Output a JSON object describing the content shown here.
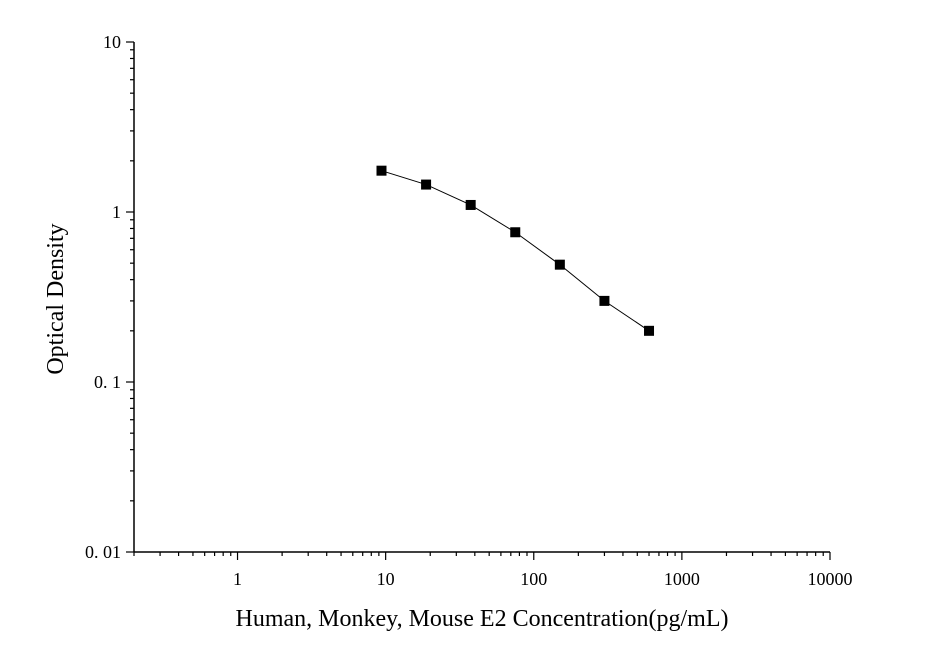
{
  "chart_data": {
    "type": "line",
    "xlabel": "Human, Monkey, Mouse E2 Concentration(pg/mL)",
    "ylabel": "Optical Density",
    "xscale": "log",
    "yscale": "log",
    "xlim": [
      0.2,
      10000
    ],
    "ylim": [
      0.01,
      10
    ],
    "x_ticks": [
      {
        "value": 1,
        "label": "1"
      },
      {
        "value": 10,
        "label": "10"
      },
      {
        "value": 100,
        "label": "100"
      },
      {
        "value": 1000,
        "label": "1000"
      },
      {
        "value": 10000,
        "label": "10000"
      }
    ],
    "y_ticks": [
      {
        "value": 0.01,
        "label": "0. 01"
      },
      {
        "value": 0.1,
        "label": "0. 1"
      },
      {
        "value": 1,
        "label": "1"
      },
      {
        "value": 10,
        "label": "10"
      }
    ],
    "grid": false,
    "series": [
      {
        "marker": "square",
        "color": "#000000",
        "x": [
          9.375,
          18.75,
          37.5,
          75,
          150,
          300,
          600
        ],
        "y": [
          1.75,
          1.45,
          1.1,
          0.76,
          0.49,
          0.3,
          0.2
        ]
      }
    ]
  }
}
